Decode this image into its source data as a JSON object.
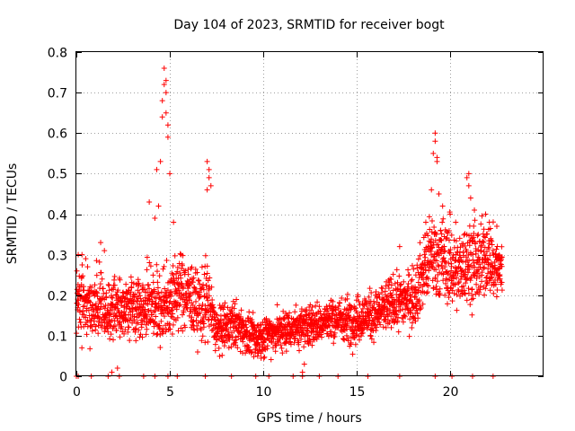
{
  "chart_data": {
    "type": "scatter",
    "title": "Day 104 of 2023, SRMTID for receiver bogt",
    "xlabel": "GPS time / hours",
    "ylabel": "SRMTID / TECUs",
    "xlim": [
      0,
      25
    ],
    "ylim": [
      0,
      0.8
    ],
    "xticks": [
      0,
      5,
      10,
      15,
      20
    ],
    "xtick_labels": [
      "0",
      "5",
      "10",
      "15",
      "20"
    ],
    "yticks": [
      0,
      0.1,
      0.2,
      0.3,
      0.4,
      0.5,
      0.6,
      0.7,
      0.8
    ],
    "ytick_labels": [
      "0",
      "0.1",
      "0.2",
      "0.3",
      "0.4",
      "0.5",
      "0.6",
      "0.7",
      "0.8"
    ],
    "grid": true,
    "marker": "+",
    "color": "#ff0000",
    "baseline": {
      "x": [
        0.0,
        0.1,
        0.8,
        1.7,
        2.3,
        3.6,
        4.2,
        4.9,
        5.4,
        6.9,
        8.3,
        9.6,
        10.3,
        11.6,
        12.1,
        13.0,
        14.0,
        15.6,
        17.3,
        19.2,
        20.1,
        21.2,
        22.3
      ],
      "y": [
        0,
        0,
        0,
        0,
        0,
        0,
        0,
        0,
        0,
        0,
        0,
        0,
        0,
        0,
        0,
        0,
        0,
        0,
        0,
        0,
        0,
        0,
        0
      ]
    },
    "trend": {
      "x": [
        0,
        0.5,
        1,
        1.5,
        2,
        2.5,
        3,
        3.5,
        4,
        4.5,
        5,
        5.5,
        6,
        6.5,
        7,
        7.5,
        8,
        8.5,
        9,
        9.5,
        10,
        10.5,
        11,
        11.5,
        12,
        12.5,
        13,
        13.5,
        14,
        14.5,
        15,
        15.5,
        16,
        16.5,
        17,
        17.5,
        18,
        18.5,
        19,
        19.5,
        20,
        20.5,
        21,
        21.5,
        22,
        22.5,
        22.8
      ],
      "y": [
        0.18,
        0.17,
        0.19,
        0.16,
        0.17,
        0.16,
        0.18,
        0.17,
        0.2,
        0.16,
        0.19,
        0.21,
        0.2,
        0.17,
        0.19,
        0.11,
        0.12,
        0.13,
        0.11,
        0.09,
        0.1,
        0.11,
        0.11,
        0.12,
        0.12,
        0.13,
        0.13,
        0.14,
        0.14,
        0.14,
        0.14,
        0.15,
        0.15,
        0.17,
        0.18,
        0.19,
        0.19,
        0.25,
        0.3,
        0.29,
        0.27,
        0.26,
        0.29,
        0.27,
        0.3,
        0.26,
        0.27
      ],
      "spread": [
        0.05,
        0.05,
        0.06,
        0.05,
        0.05,
        0.05,
        0.05,
        0.05,
        0.06,
        0.06,
        0.07,
        0.06,
        0.06,
        0.06,
        0.07,
        0.04,
        0.04,
        0.04,
        0.035,
        0.035,
        0.035,
        0.035,
        0.035,
        0.035,
        0.035,
        0.035,
        0.035,
        0.035,
        0.035,
        0.04,
        0.04,
        0.04,
        0.04,
        0.045,
        0.045,
        0.045,
        0.05,
        0.06,
        0.07,
        0.07,
        0.07,
        0.06,
        0.07,
        0.07,
        0.06,
        0.06,
        0.05
      ]
    },
    "outliers": {
      "x": [
        0.1,
        0.3,
        0.5,
        0.6,
        1.3,
        1.5,
        1.9,
        2.2,
        3.9,
        4.2,
        4.3,
        4.4,
        4.5,
        4.6,
        4.6,
        4.7,
        4.7,
        4.8,
        4.8,
        4.8,
        4.9,
        4.9,
        5.0,
        5.2,
        5.6,
        7.0,
        7.1,
        7.1,
        7.2,
        7.0,
        9.7,
        12.1,
        12.2,
        17.3,
        18.7,
        19.0,
        19.1,
        19.2,
        19.2,
        19.3,
        19.3,
        19.4,
        19.6,
        20.0,
        20.3,
        20.9,
        21.0,
        21.0,
        21.1,
        21.3,
        21.9,
        22.1,
        22.5
      ],
      "y": [
        0.3,
        0.3,
        0.29,
        0.27,
        0.33,
        0.31,
        0.01,
        0.02,
        0.43,
        0.39,
        0.51,
        0.42,
        0.53,
        0.64,
        0.68,
        0.72,
        0.76,
        0.65,
        0.7,
        0.73,
        0.62,
        0.59,
        0.5,
        0.38,
        0.3,
        0.53,
        0.51,
        0.49,
        0.47,
        0.46,
        0.05,
        0.01,
        0.03,
        0.32,
        0.38,
        0.46,
        0.55,
        0.6,
        0.58,
        0.53,
        0.54,
        0.45,
        0.42,
        0.4,
        0.38,
        0.49,
        0.5,
        0.47,
        0.44,
        0.41,
        0.4,
        0.38,
        0.37
      ]
    }
  }
}
